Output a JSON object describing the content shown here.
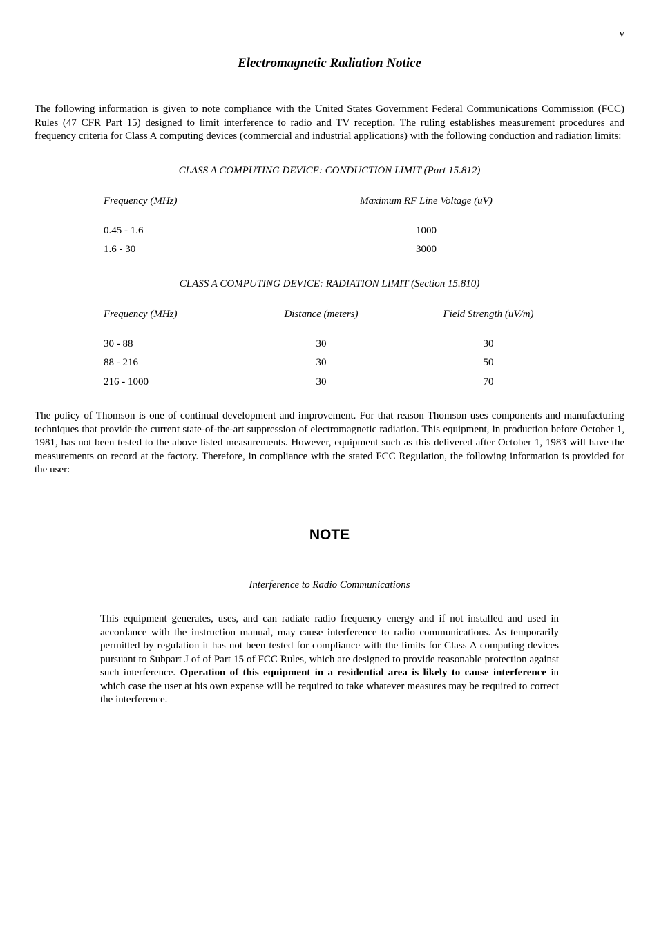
{
  "page_number": "v",
  "title": "Electromagnetic Radiation Notice",
  "intro_para": "The following information is given to note compliance with the United States Government Federal Communications Commission (FCC) Rules (47 CFR Part 15) designed to limit interference to radio and TV reception. The ruling establishes measurement procedures and frequency criteria for Class A computing devices (commercial and industrial applications) with the following conduction and radiation limits:",
  "table1": {
    "heading": "CLASS A COMPUTING DEVICE: CONDUCTION LIMIT (Part 15.812)",
    "headers": {
      "col1": "Frequency (MHz)",
      "col2": "Maximum RF Line Voltage (uV)"
    },
    "rows": [
      {
        "col1": "0.45 - 1.6",
        "col2": "1000"
      },
      {
        "col1": "1.6 - 30",
        "col2": "3000"
      }
    ]
  },
  "table2": {
    "heading": "CLASS A COMPUTING DEVICE: RADIATION LIMIT (Section 15.810)",
    "headers": {
      "col1": "Frequency (MHz)",
      "col2": "Distance (meters)",
      "col3": "Field Strength (uV/m)"
    },
    "rows": [
      {
        "col1": "30 - 88",
        "col2": "30",
        "col3": "30"
      },
      {
        "col1": "88 - 216",
        "col2": "30",
        "col3": "50"
      },
      {
        "col1": "216 - 1000",
        "col2": "30",
        "col3": "70"
      }
    ]
  },
  "policy_para": "The policy of Thomson is one of continual development and improvement. For that reason Thomson uses components and manufacturing techniques that provide the current state-of-the-art suppression of electromagnetic radiation. This equipment, in production before October 1, 1981, has not been tested to the above listed measurements. However, equipment such as this delivered after October 1, 1983 will have the measurements on record at the factory. Therefore, in compliance with the stated FCC Regulation, the following information is provided for the user:",
  "note": {
    "heading": "NOTE",
    "subheading": "Interference to Radio Communications",
    "body_pre": "This equipment generates, uses, and can radiate radio frequency energy and if not installed and used in accordance with the instruction manual, may cause interference to radio communications. As temporarily permitted by regulation it has not been tested for compliance with the limits for Class A computing devices pursuant to Subpart J of of Part 15 of FCC Rules, which are designed to provide reasonable protection against such interference. ",
    "body_bold": "Operation of this equipment in a residential area is likely to cause interference",
    "body_post": " in which case the user at his own expense will be required to take whatever measures may be required to correct the interference."
  }
}
